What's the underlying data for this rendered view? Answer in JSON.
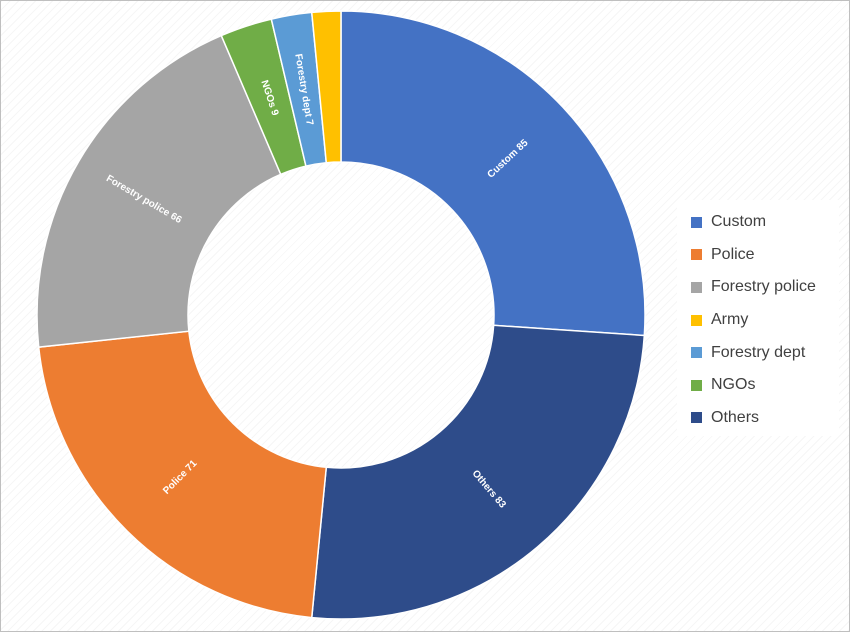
{
  "chart_data": {
    "type": "pie",
    "donut": true,
    "title": "",
    "legend_position": "right",
    "slices": [
      {
        "name": "Custom",
        "value": 85,
        "label": "Custom 85",
        "color": "#4472c4"
      },
      {
        "name": "Others",
        "value": 83,
        "label": "Others 83",
        "color": "#2e4c8a"
      },
      {
        "name": "Police",
        "value": 71,
        "label": "Police 71",
        "color": "#ed7d31"
      },
      {
        "name": "Forestry police",
        "value": 66,
        "label": "Forestry police 66",
        "color": "#a5a5a5"
      },
      {
        "name": "NGOs",
        "value": 9,
        "label": "NGOs 9",
        "color": "#70ad47"
      },
      {
        "name": "Forestry dept",
        "value": 7,
        "label": "Forestry dept 7",
        "color": "#5b9bd5"
      },
      {
        "name": "Army",
        "value": 5,
        "label": "",
        "color": "#ffc000"
      }
    ],
    "legend": [
      {
        "name": "Custom",
        "color": "#4472c4"
      },
      {
        "name": "Police",
        "color": "#ed7d31"
      },
      {
        "name": "Forestry police",
        "color": "#a5a5a5"
      },
      {
        "name": "Army",
        "color": "#ffc000"
      },
      {
        "name": "Forestry dept",
        "color": "#5b9bd5"
      },
      {
        "name": "NGOs",
        "color": "#70ad47"
      },
      {
        "name": "Others",
        "color": "#2e4c8a"
      }
    ]
  }
}
